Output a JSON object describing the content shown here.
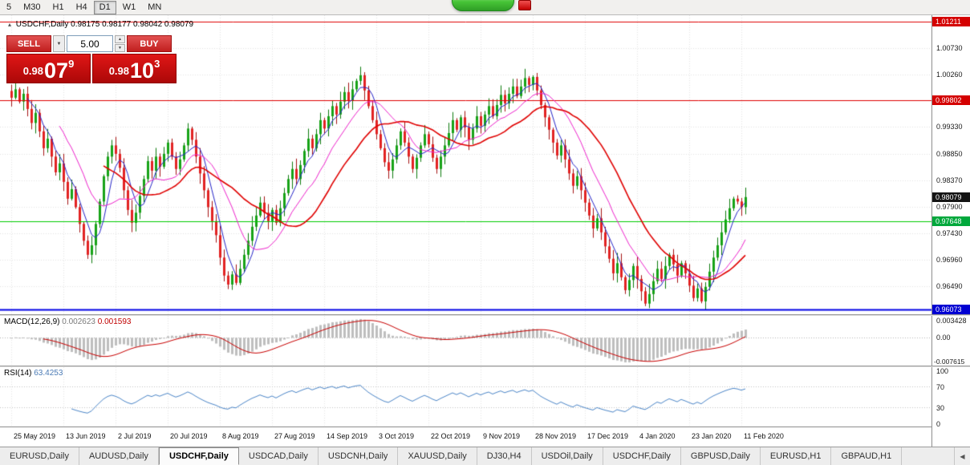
{
  "toolbar": {
    "timeframes": [
      "5",
      "M30",
      "H1",
      "H4",
      "D1",
      "W1",
      "MN"
    ],
    "active": "D1"
  },
  "icons": {
    "collapse": "▴",
    "dropdown": "▼",
    "spin_up": "▲",
    "spin_down": "▼",
    "tab_scroll_left": "◀"
  },
  "chart": {
    "symbol": "USDCHF,Daily",
    "ohlc": "0.98175 0.98177 0.98042 0.98079"
  },
  "trade_panel": {
    "sell_label": "SELL",
    "buy_label": "BUY",
    "volume": "5.00",
    "sell": {
      "prefix": "0.98",
      "big": "07",
      "sup": "9"
    },
    "buy": {
      "prefix": "0.98",
      "big": "10",
      "sup": "3"
    }
  },
  "price_axis": {
    "labels": [
      {
        "text": "1.00730",
        "price": 1.0073
      },
      {
        "text": "1.00260",
        "price": 1.0026
      },
      {
        "text": "0.99330",
        "price": 0.9933
      },
      {
        "text": "0.98850",
        "price": 0.9885
      },
      {
        "text": "0.98370",
        "price": 0.9837
      },
      {
        "text": "0.97900",
        "price": 0.979
      },
      {
        "text": "0.97430",
        "price": 0.9743
      },
      {
        "text": "0.96960",
        "price": 0.9696
      },
      {
        "text": "0.96490",
        "price": 0.9649
      }
    ],
    "badges": [
      {
        "text": "1.01211",
        "price": 1.01211,
        "color": "#D40000"
      },
      {
        "text": "0.99802",
        "price": 0.99802,
        "color": "#D40000"
      },
      {
        "text": "0.98079",
        "price": 0.98079,
        "color": "#141414"
      },
      {
        "text": "0.97648",
        "price": 0.97648,
        "color": "#00A83C"
      },
      {
        "text": "0.96073",
        "price": 0.96073,
        "color": "#0000D2"
      }
    ]
  },
  "macd": {
    "name": "MACD(12,26,9)",
    "value1": "0.002623",
    "value2": "0.001593",
    "axis_max": "0.003428",
    "axis_zero": "0.00",
    "axis_min": "-0.007615"
  },
  "rsi": {
    "name": "RSI(14)",
    "value": "63.4253",
    "axis": [
      "100",
      "70",
      "30",
      "0"
    ],
    "levels": [
      70,
      30
    ]
  },
  "tabs": {
    "items": [
      "EURUSD,Daily",
      "AUDUSD,Daily",
      "USDCHF,Daily",
      "USDCAD,Daily",
      "USDCNH,Daily",
      "XAUUSD,Daily",
      "DJ30,H4",
      "USDOil,Daily",
      "USDCHF,Daily",
      "GBPUSD,Daily",
      "EURUSD,H1",
      "GBPAUD,H1"
    ],
    "active_index": 2
  },
  "chart_data": {
    "type": "candlestick",
    "symbol": "USDCHF",
    "period": "Daily",
    "title": "USDCHF,Daily",
    "ylim": [
      0.9599,
      1.0132
    ],
    "grid_on": true,
    "x_labels": [
      "25 May 2019",
      "13 Jun 2019",
      "2 Jul 2019",
      "20 Jul 2019",
      "8 Aug 2019",
      "27 Aug 2019",
      "14 Sep 2019",
      "3 Oct 2019",
      "22 Oct 2019",
      "9 Nov 2019",
      "28 Nov 2019",
      "17 Dec 2019",
      "4 Jan 2020",
      "23 Jan 2020",
      "11 Feb 2020"
    ],
    "label_every": 13,
    "last_price": 0.98079,
    "grid_prices": [
      1.0073,
      1.0026,
      0.9933,
      0.9885,
      0.9837,
      0.979,
      0.9743,
      0.9696,
      0.9649
    ],
    "hlines": [
      {
        "price": 1.01211,
        "color": "#E00000",
        "width": 1
      },
      {
        "price": 0.99802,
        "color": "#E00000",
        "width": 1
      },
      {
        "price": 0.97648,
        "color": "#00CC00",
        "width": 1
      },
      {
        "price": 0.96073,
        "color": "#0000E6",
        "width": 2
      }
    ],
    "closes": [
      0.9985,
      1.0,
      0.9978,
      0.9992,
      0.9965,
      0.994,
      0.9958,
      0.9925,
      0.9895,
      0.9912,
      0.988,
      0.9852,
      0.9868,
      0.9835,
      0.9805,
      0.9822,
      0.979,
      0.976,
      0.973,
      0.9705,
      0.9722,
      0.976,
      0.98,
      0.9845,
      0.988,
      0.99,
      0.9885,
      0.986,
      0.982,
      0.9785,
      0.9762,
      0.978,
      0.981,
      0.984,
      0.9872,
      0.9855,
      0.988,
      0.9862,
      0.9885,
      0.9905,
      0.988,
      0.9858,
      0.9875,
      0.99,
      0.993,
      0.991,
      0.988,
      0.985,
      0.982,
      0.979,
      0.9765,
      0.974,
      0.97,
      0.9668,
      0.9652,
      0.967,
      0.9655,
      0.968,
      0.9705,
      0.973,
      0.9755,
      0.9775,
      0.9798,
      0.978,
      0.9765,
      0.9785,
      0.9762,
      0.9788,
      0.9815,
      0.984,
      0.9858,
      0.984,
      0.9865,
      0.989,
      0.9912,
      0.9895,
      0.992,
      0.9945,
      0.993,
      0.9952,
      0.997,
      0.9955,
      0.9978,
      0.9995,
      0.998,
      1.0,
      1.0015,
      1.0025,
      0.9998,
      0.997,
      0.9945,
      0.992,
      0.9895,
      0.987,
      0.9855,
      0.9875,
      0.99,
      0.9925,
      0.9905,
      0.988,
      0.9858,
      0.9878,
      0.99,
      0.992,
      0.9902,
      0.9878,
      0.9858,
      0.988,
      0.99,
      0.9922,
      0.9945,
      0.9928,
      0.995,
      0.9932,
      0.991,
      0.993,
      0.9952,
      0.9935,
      0.9955,
      0.997,
      0.9952,
      0.9972,
      0.999,
      0.9975,
      0.9992,
      1.0005,
      0.9988,
      1.0005,
      1.002,
      1.0008,
      1.0022,
      0.9998,
      0.9972,
      0.995,
      0.9928,
      0.9905,
      0.9882,
      0.99,
      0.9875,
      0.985,
      0.9828,
      0.9845,
      0.982,
      0.9798,
      0.9775,
      0.9752,
      0.977,
      0.9745,
      0.972,
      0.9698,
      0.9672,
      0.969,
      0.9665,
      0.9642,
      0.966,
      0.9685,
      0.9662,
      0.964,
      0.9618,
      0.9635,
      0.9658,
      0.968,
      0.9662,
      0.9685,
      0.9705,
      0.9688,
      0.9668,
      0.969,
      0.9672,
      0.965,
      0.9628,
      0.9645,
      0.9622,
      0.9648,
      0.9675,
      0.97,
      0.9722,
      0.9745,
      0.9768,
      0.9788,
      0.9805,
      0.98,
      0.979,
      0.98079
    ],
    "up_color": "#17A317",
    "up_border": "#0E7C0E",
    "down_color": "#E22222",
    "down_border": "#A31212",
    "ma": [
      {
        "period": 5,
        "color": "#2424C8",
        "width": 1
      },
      {
        "period": 13,
        "color": "#EE22CC",
        "width": 1
      },
      {
        "period": 24,
        "color": "#E00000",
        "width": 1.6
      }
    ],
    "macd": {
      "fast": 12,
      "slow": 26,
      "signal": 9,
      "hist_color": "#BEBEBE",
      "line_color": "#C80000"
    },
    "rsi": {
      "period": 14,
      "color": "#4C86C8",
      "levels": [
        70,
        30
      ]
    }
  }
}
